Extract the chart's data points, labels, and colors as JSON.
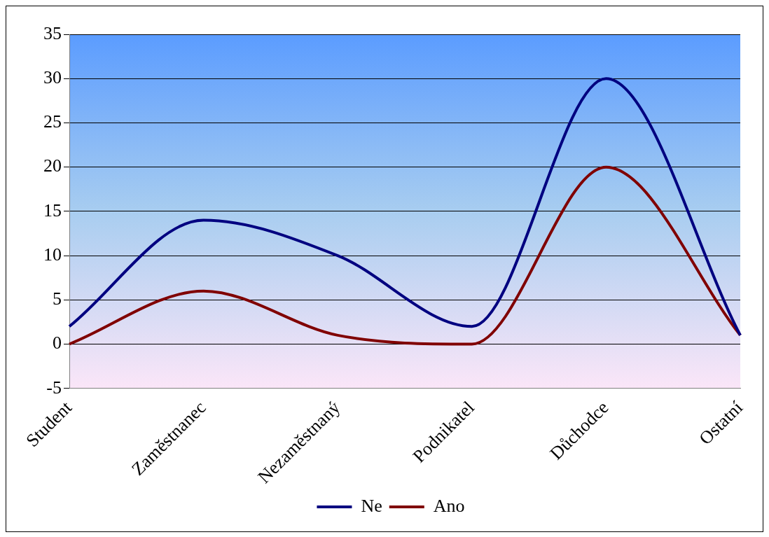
{
  "chart_data": {
    "type": "line",
    "categories": [
      "Student",
      "Zaměstnanec",
      "Nezaměstnaný",
      "Podnikatel",
      "Důchodce",
      "Ostatní"
    ],
    "series": [
      {
        "name": "Ne",
        "color": "#000080",
        "values": [
          2,
          14,
          10,
          2,
          30,
          1
        ]
      },
      {
        "name": "Ano",
        "color": "#800000",
        "values": [
          0,
          6,
          1,
          0,
          20,
          1
        ]
      }
    ],
    "ylim": [
      -5,
      35
    ],
    "yticks": [
      -5,
      0,
      5,
      10,
      15,
      20,
      25,
      30,
      35
    ],
    "grid": "y",
    "legend": "bottom",
    "marker": "none",
    "line_style": "solid"
  }
}
